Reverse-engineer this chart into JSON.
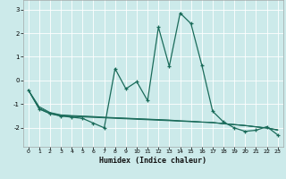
{
  "xlabel": "Humidex (Indice chaleur)",
  "bg_color": "#cceaea",
  "plot_bg_color": "#cceaea",
  "grid_color": "#ffffff",
  "line_color": "#1a6b5a",
  "xlabel_bg": "#a0c8c8",
  "x_values": [
    0,
    1,
    2,
    3,
    4,
    5,
    6,
    7,
    8,
    9,
    10,
    11,
    12,
    13,
    14,
    15,
    16,
    17,
    18,
    19,
    20,
    21,
    22,
    23
  ],
  "line1_y": [
    -0.4,
    -1.2,
    -1.4,
    -1.5,
    -1.55,
    -1.6,
    -1.8,
    -2.0,
    0.5,
    -0.35,
    -0.05,
    -0.85,
    2.25,
    0.6,
    2.85,
    2.4,
    0.65,
    -1.3,
    -1.75,
    -2.0,
    -2.15,
    -2.1,
    -1.95,
    -2.3
  ],
  "line2_y": [
    -0.4,
    -1.2,
    -1.4,
    -1.5,
    -1.52,
    -1.54,
    -1.56,
    -1.58,
    -1.6,
    -1.62,
    -1.64,
    -1.66,
    -1.68,
    -1.7,
    -1.72,
    -1.74,
    -1.76,
    -1.78,
    -1.82,
    -1.86,
    -1.9,
    -1.96,
    -2.01,
    -2.1
  ],
  "line3_y": [
    -0.4,
    -1.1,
    -1.35,
    -1.45,
    -1.48,
    -1.5,
    -1.52,
    -1.55,
    -1.57,
    -1.59,
    -1.61,
    -1.63,
    -1.65,
    -1.67,
    -1.7,
    -1.72,
    -1.75,
    -1.77,
    -1.82,
    -1.86,
    -1.9,
    -1.95,
    -2.0,
    -2.08
  ],
  "line4_y": [
    -0.4,
    -1.15,
    -1.37,
    -1.47,
    -1.5,
    -1.52,
    -1.54,
    -1.56,
    -1.58,
    -1.6,
    -1.62,
    -1.64,
    -1.66,
    -1.68,
    -1.71,
    -1.73,
    -1.76,
    -1.78,
    -1.83,
    -1.87,
    -1.91,
    -1.96,
    -2.01,
    -2.09
  ],
  "ylim": [
    -2.8,
    3.4
  ],
  "yticks": [
    -2,
    -1,
    0,
    1,
    2,
    3
  ],
  "xticks": [
    0,
    1,
    2,
    3,
    4,
    5,
    6,
    7,
    8,
    9,
    10,
    11,
    12,
    13,
    14,
    15,
    16,
    17,
    18,
    19,
    20,
    21,
    22,
    23
  ]
}
